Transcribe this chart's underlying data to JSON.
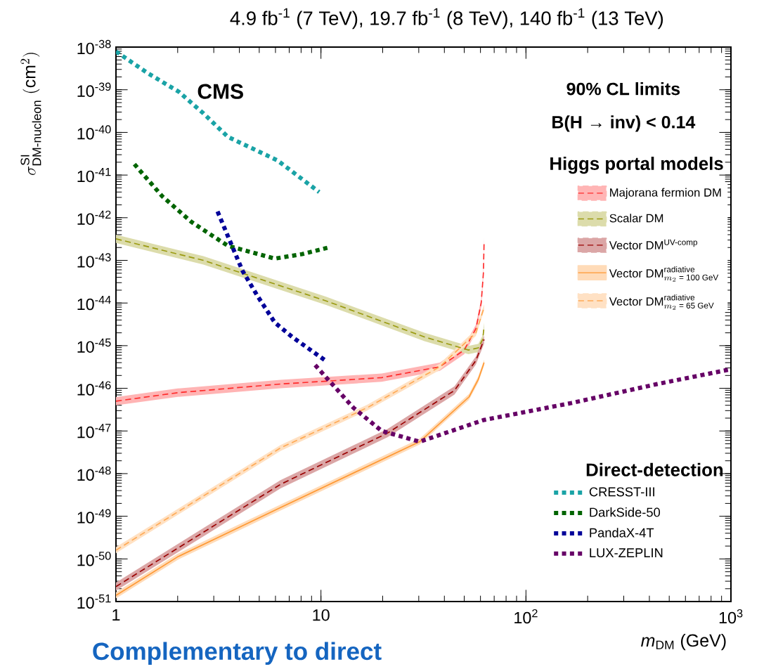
{
  "chart_data": {
    "type": "line",
    "title": "4.9 fb$^{-1}$ (7 TeV), 19.7 fb$^{-1}$ (8 TeV), 140 fb$^{-1}$ (13 TeV)",
    "xlabel": "*m*$_{DM}$ (GeV)",
    "ylabel": "\\sigma^{\\text{SI}}_{\\text{DM-nucleon}}\\ (\\text{cm}^{2})",
    "log": "xy",
    "grid": false,
    "legend": "right",
    "marker": "none",
    "xlim": [
      1,
      1000
    ],
    "xticks": [
      1,
      10,
      {
        "value": 100,
        "label": "10$^{2}$"
      },
      {
        "value": 1000,
        "label": "10$^{3}$"
      }
    ],
    "ylim": [
      1e-51,
      1e-38
    ],
    "yticks": [
      {
        "value": 1e-51,
        "label": "10$^{-51}$"
      },
      {
        "value": 1e-50,
        "label": "10$^{-50}$"
      },
      {
        "value": 1e-49,
        "label": "10$^{-49}$"
      },
      {
        "value": 1e-48,
        "label": "10$^{-48}$"
      },
      {
        "value": 1e-47,
        "label": "10$^{-47}$"
      },
      {
        "value": 1e-46,
        "label": "10$^{-46}$"
      },
      {
        "value": 1e-45,
        "label": "10$^{-45}$"
      },
      {
        "value": 1e-44,
        "label": "10$^{-44}$"
      },
      {
        "value": 1e-43,
        "label": "10$^{-43}$"
      },
      {
        "value": 1e-42,
        "label": "10$^{-42}$"
      },
      {
        "value": 1e-41,
        "label": "10$^{-41}$"
      },
      {
        "value": 1e-40,
        "label": "10$^{-40}$"
      },
      {
        "value": 1e-39,
        "label": "10$^{-39}$"
      },
      {
        "value": 1e-38,
        "label": "10$^{-38}$"
      }
    ],
    "annotations": [
      "CMS",
      "90% CL limits",
      "B(H → inv) < 0.14",
      "Higgs portal models",
      "Direct-detection",
      "Complementary to direct"
    ],
    "series": [
      {
        "name": "Majorana fermion DM",
        "color": "#ff2a2a",
        "line_style": "dashed",
        "x": [
          1,
          2,
          6.35,
          19.8,
          38,
          50,
          57,
          60.5,
          62,
          62.5
        ],
        "values": [
          5e-47,
          7.9e-47,
          1.26e-46,
          1.78e-46,
          3.2e-46,
          7.9e-46,
          2.5e-45,
          1e-44,
          5e-44,
          2.8e-43
        ],
        "lower": [
          4e-47,
          6.3e-47,
          1e-46,
          1.42e-46,
          2.56e-46,
          6.3e-46,
          2e-45,
          8e-45,
          4e-44,
          2.24e-43
        ],
        "upper": [
          6.25e-47,
          9.9e-47,
          1.58e-46,
          2.23e-46,
          4e-46,
          9.9e-46,
          3.1e-45,
          1.25e-44,
          6.25e-44,
          3.5e-43
        ]
      },
      {
        "name": "Scalar DM",
        "color": "#9a9a10",
        "line_style": "dashed",
        "x": [
          1,
          2.67,
          10.6,
          32,
          52.4,
          58.6,
          61.5,
          62.5
        ],
        "values": [
          3.2e-43,
          1e-43,
          1.12e-44,
          1.6e-45,
          7.9e-46,
          8.9e-46,
          1.4e-45,
          2.8e-45
        ],
        "lower": [
          2.56e-43,
          8e-44,
          9e-45,
          1.28e-45,
          6.3e-46,
          7.1e-46,
          1.12e-45,
          2.24e-45
        ],
        "upper": [
          4e-43,
          1.25e-43,
          1.4e-44,
          2e-45,
          9.9e-46,
          1.11e-45,
          1.75e-45,
          3.5e-45
        ]
      },
      {
        "name": "Vector DM$^{UV-comp}$",
        "color": "#990000",
        "line_style": "dashed",
        "x": [
          1,
          2,
          6.35,
          21.1,
          44.8,
          57,
          62.5
        ],
        "values": [
          2.24e-51,
          1.78e-50,
          5.6e-49,
          8.9e-48,
          8.9e-47,
          4.5e-46,
          1.4e-45
        ],
        "lower": [
          1.8e-51,
          1.42e-50,
          4.5e-49,
          7.1e-48,
          7.1e-47,
          3.6e-46,
          1.12e-45
        ],
        "upper": [
          2.8e-51,
          2.23e-50,
          7e-49,
          1.11e-47,
          1.11e-46,
          5.6e-46,
          1.75e-45
        ]
      },
      {
        "name": "\\text{Vector DM}^{\\text{radiative}}_{m_{2}\\text{ = 100 GeV}}",
        "color": "#ff9933",
        "line_style": "solid",
        "x": [
          1,
          2,
          6.35,
          30.3,
          52.8,
          58.5,
          62.5
        ],
        "values": [
          1.4e-51,
          1.12e-50,
          1.6e-49,
          5.6e-48,
          6.3e-47,
          1.6e-46,
          4e-46
        ],
        "lower": [
          1.19e-51,
          9.5e-51,
          1.36e-49,
          4.8e-48,
          5.4e-47,
          1.36e-46,
          3.4e-46
        ],
        "upper": [
          1.65e-51,
          1.32e-50,
          1.89e-49,
          6.6e-48,
          7.4e-47,
          1.89e-46,
          4.7e-46
        ]
      },
      {
        "name": "\\text{Vector DM}^{\\text{radiative}}_{m_{2}\\text{ = 65 GeV}}",
        "color": "#ffaa55",
        "line_style": "dashed",
        "x": [
          1,
          2,
          6.35,
          16.8,
          38,
          57,
          62.5
        ],
        "values": [
          1.6e-50,
          1.26e-49,
          4e-48,
          3.5e-47,
          3.2e-46,
          2e-45,
          7.9e-45
        ],
        "lower": [
          1.36e-50,
          1.07e-49,
          3.4e-48,
          3e-47,
          2.7e-46,
          1.7e-45,
          6.7e-45
        ],
        "upper": [
          1.89e-50,
          1.49e-49,
          4.7e-48,
          4.1e-47,
          3.8e-46,
          2.4e-45,
          9.3e-45
        ]
      },
      {
        "name": "CRESST-III",
        "color": "#1aa3a6",
        "line_style": "dotted",
        "x": [
          1,
          1.42,
          2.03,
          2.67,
          3.51,
          6.14,
          9.8
        ],
        "values": [
          7.9e-39,
          2.5e-39,
          8.9e-40,
          2.8e-40,
          7.9e-41,
          2.2e-41,
          4e-42
        ]
      },
      {
        "name": "DarkSide-50",
        "color": "#006400",
        "line_style": "dotted",
        "x": [
          1.23,
          1.68,
          2.34,
          3.51,
          5.95,
          8.09,
          10.9
        ],
        "values": [
          1.8e-41,
          3.2e-42,
          7.9e-43,
          2.2e-43,
          1.1e-43,
          1.4e-43,
          2e-43
        ]
      },
      {
        "name": "PandaX-4T",
        "color": "#000099",
        "line_style": "dotted",
        "x": [
          3.13,
          3.71,
          4.15,
          4.93,
          5.95,
          7.24,
          10.5
        ],
        "values": [
          1.4e-42,
          2e-43,
          5.6e-44,
          1.4e-44,
          3.5e-45,
          1.6e-45,
          4.5e-46
        ]
      },
      {
        "name": "LUX-ZEPLIN",
        "color": "#660066",
        "line_style": "dotted",
        "x": [
          9.37,
          14.4,
          19.8,
          30.3,
          62.1,
          166,
          437,
          1000
        ],
        "values": [
          3.5e-46,
          3.5e-47,
          1e-47,
          5.6e-48,
          1.8e-47,
          4.5e-47,
          1.26e-46,
          2.8e-46
        ]
      }
    ]
  }
}
